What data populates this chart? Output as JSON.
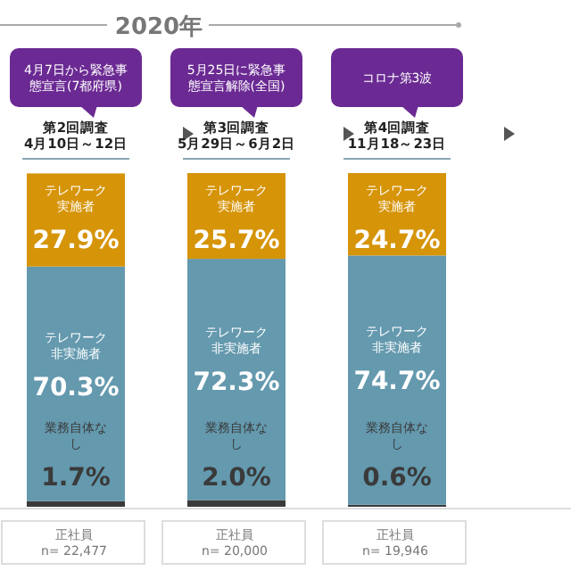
{
  "chart_data": {
    "type": "bar",
    "stacked": true,
    "title": "2020年",
    "categories": [
      "正社員\nn= 22,477",
      "正社員\nn= 20,000",
      "正社員\nn= 19,946"
    ],
    "series": [
      {
        "name": "業務自体なし",
        "color": "#3a3a3a",
        "values": [
          1.7,
          2.0,
          0.6
        ],
        "value_labels": [
          "1.7%",
          "2.0%",
          "0.6%"
        ]
      },
      {
        "name": "テレワーク非実施者",
        "color": "#6499ae",
        "values": [
          70.3,
          72.3,
          74.7
        ],
        "value_labels": [
          "70.3%",
          "72.3%",
          "74.7%"
        ]
      },
      {
        "name": "テレワーク実施者",
        "color": "#d69409",
        "values": [
          27.9,
          25.7,
          24.7
        ],
        "value_labels": [
          "27.9%",
          "25.7%",
          "24.7%"
        ]
      }
    ],
    "annotations": [
      "4月7日から緊急事態宣言(7都府県)",
      "第2回調査\n4月10日～12日",
      "5月25日に緊急事態宣言解除(全国)",
      "第3回調査\n5月29日～6月2日",
      "コロナ第3波",
      "第4回調査\n11月18～23日"
    ]
  }
}
